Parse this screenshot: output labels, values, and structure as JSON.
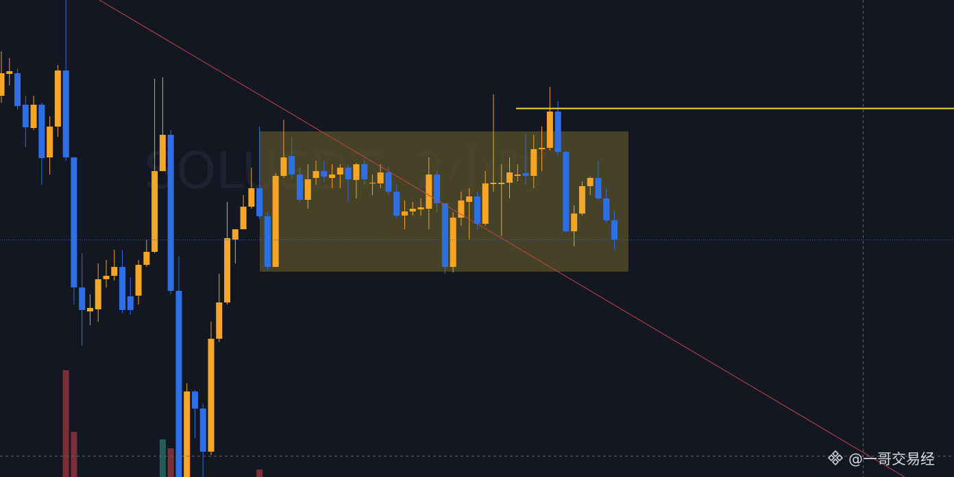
{
  "chart_data": {
    "type": "candlestick",
    "watermark": "SOLUSDT, 2小时",
    "footer": "@一哥交易经",
    "ylim": [
      0,
      697
    ],
    "up_color": "#f7a526",
    "down_color": "#2f6fe6",
    "open": [
      557,
      589,
      590,
      544,
      510,
      544,
      467,
      512,
      594,
      467,
      277,
      242,
      245,
      289,
      294,
      307,
      264,
      265,
      310,
      329,
      447,
      500,
      272,
      0,
      125,
      100,
      37,
      202,
      255,
      347,
      362,
      395,
      422,
      381,
      307,
      440,
      469,
      442,
      405,
      437,
      447,
      437,
      442,
      452,
      434,
      457,
      429,
      429,
      445,
      417,
      382,
      388,
      391,
      392,
      442,
      400,
      307,
      379,
      402,
      410,
      370,
      428,
      428,
      430,
      440,
      444,
      440,
      479,
      481,
      534,
      475,
      359,
      385,
      425,
      437,
      407,
      375
    ],
    "high": [
      622,
      612,
      597,
      557,
      557,
      547,
      527,
      602,
      697,
      467,
      327,
      267,
      312,
      317,
      332,
      332,
      292,
      317,
      347,
      582,
      584,
      507,
      322,
      137,
      127,
      107,
      227,
      297,
      402,
      362,
      412,
      452,
      512,
      387,
      444,
      522,
      497,
      452,
      457,
      462,
      462,
      457,
      457,
      457,
      459,
      462,
      442,
      457,
      452,
      427,
      404,
      402,
      407,
      467,
      447,
      400,
      387,
      417,
      422,
      417,
      447,
      559,
      457,
      467,
      457,
      502,
      500,
      512,
      570,
      549,
      477,
      397,
      432,
      439,
      462,
      422,
      389
    ],
    "low": [
      547,
      572,
      537,
      482,
      507,
      427,
      442,
      497,
      462,
      252,
      192,
      222,
      227,
      277,
      287,
      239,
      237,
      252,
      307,
      327,
      447,
      267,
      0,
      0,
      57,
      0,
      32,
      197,
      252,
      312,
      362,
      392,
      377,
      302,
      307,
      437,
      435,
      402,
      392,
      427,
      432,
      422,
      422,
      402,
      407,
      427,
      412,
      422,
      412,
      379,
      362,
      382,
      382,
      362,
      387,
      297,
      299,
      367,
      347,
      362,
      367,
      417,
      352,
      407,
      432,
      427,
      422,
      447,
      477,
      469,
      357,
      337,
      382,
      412,
      405,
      372,
      332
    ],
    "close": [
      590,
      593,
      542,
      511,
      544,
      466,
      512,
      594,
      467,
      277,
      244,
      247,
      289,
      294,
      307,
      244,
      244,
      310,
      329,
      447,
      500,
      272,
      0,
      125,
      100,
      37,
      202,
      255,
      349,
      362,
      395,
      422,
      381,
      307,
      440,
      467,
      442,
      405,
      435,
      447,
      439,
      442,
      452,
      435,
      457,
      435,
      430,
      445,
      417,
      382,
      388,
      392,
      394,
      442,
      400,
      307,
      379,
      404,
      410,
      370,
      429,
      430,
      430,
      445,
      442,
      440,
      479,
      481,
      534,
      475,
      359,
      385,
      425,
      437,
      407,
      375,
      347
    ],
    "volume": [
      null,
      null,
      null,
      null,
      null,
      null,
      null,
      null,
      156,
      66,
      null,
      null,
      null,
      null,
      null,
      null,
      null,
      null,
      null,
      null,
      55,
      42,
      null,
      null,
      null,
      null,
      null,
      null,
      null,
      null,
      null,
      null,
      11,
      null,
      null,
      null,
      null,
      null,
      null,
      null,
      null,
      null,
      null,
      null,
      null,
      null,
      null,
      null,
      null,
      null,
      null,
      null,
      null,
      null,
      null,
      null,
      null,
      null,
      null,
      null,
      null,
      null,
      null,
      null,
      null,
      null,
      null,
      null,
      null,
      null,
      null,
      null,
      null,
      null,
      null,
      null,
      null
    ],
    "volume_colors": {
      "up": "#1f5f5a",
      "down": "#7a2e38"
    }
  }
}
